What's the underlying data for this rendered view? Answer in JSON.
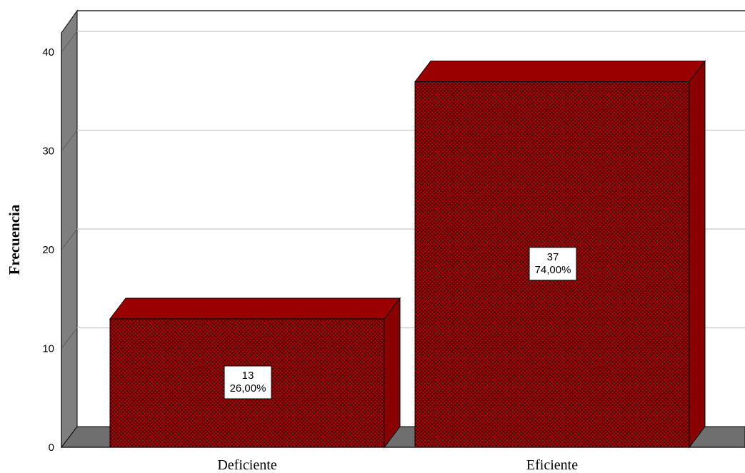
{
  "chart_data": {
    "type": "bar",
    "categories": [
      "Deficiente",
      "Eficiente"
    ],
    "values": [
      13,
      37
    ],
    "percent_labels": [
      "26,00%",
      "74,00%"
    ],
    "ylabel": "Frecuencia",
    "xlabel": "",
    "ylim": [
      0,
      40
    ],
    "yticks": [
      "0",
      "10",
      "20",
      "30",
      "40"
    ],
    "grid": true,
    "legend": "none",
    "style": "3d-bars-crosshatch"
  },
  "colors": {
    "bar_front": "#c00000",
    "bar_pattern": "#000000",
    "bar_top": "#9b0000",
    "bar_side": "#8a0000",
    "wall": "#7f7f7f",
    "floor": "#6f6f6f",
    "grid": "#c8c8c8"
  }
}
